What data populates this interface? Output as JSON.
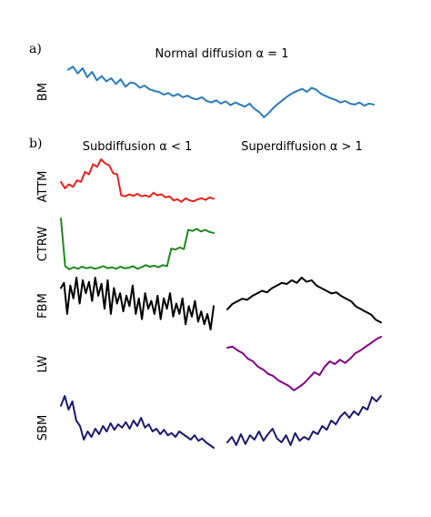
{
  "figure": {
    "panel_a_label": "a)",
    "panel_b_label": "b)",
    "normal_title": "Normal diffusion α = 1",
    "sub_title": "Subdiffusion α < 1",
    "super_title": "Superdiffusion α > 1"
  },
  "colors": {
    "BM": "#2b7bb9",
    "ATTM": "#e8221d",
    "CTRW": "#1f8a1f",
    "FBM": "#000000",
    "LW": "#800080",
    "SBM": "#1a1a6e"
  },
  "chart_data": {
    "type": "line",
    "grid": false,
    "legend": "none",
    "axes_visible": false,
    "panels": [
      {
        "row": "BM",
        "column": "Normal diffusion α = 1",
        "color": "#2b7bb9",
        "values": [
          0.92,
          0.98,
          0.85,
          0.95,
          0.78,
          0.88,
          0.72,
          0.8,
          0.7,
          0.76,
          0.65,
          0.74,
          0.6,
          0.68,
          0.66,
          0.58,
          0.62,
          0.55,
          0.52,
          0.5,
          0.45,
          0.48,
          0.42,
          0.46,
          0.4,
          0.43,
          0.38,
          0.36,
          0.4,
          0.33,
          0.3,
          0.34,
          0.28,
          0.32,
          0.25,
          0.3,
          0.26,
          0.22,
          0.28,
          0.18,
          0.12,
          0.02,
          0.1,
          0.2,
          0.28,
          0.35,
          0.42,
          0.48,
          0.52,
          0.56,
          0.5,
          0.58,
          0.54,
          0.46,
          0.42,
          0.38,
          0.35,
          0.3,
          0.33,
          0.28,
          0.26,
          0.3,
          0.24,
          0.28,
          0.26
        ]
      },
      {
        "row": "ATTM",
        "column": "Subdiffusion α < 1",
        "color": "#e8221d",
        "values": [
          0.55,
          0.42,
          0.5,
          0.45,
          0.58,
          0.55,
          0.75,
          0.7,
          0.9,
          0.85,
          1.0,
          0.92,
          0.88,
          0.72,
          0.7,
          0.28,
          0.26,
          0.3,
          0.27,
          0.31,
          0.26,
          0.28,
          0.25,
          0.33,
          0.28,
          0.3,
          0.24,
          0.26,
          0.18,
          0.2,
          0.15,
          0.22,
          0.18,
          0.16,
          0.2,
          0.22,
          0.19,
          0.24,
          0.21
        ]
      },
      {
        "row": "CTRW",
        "column": "Subdiffusion α < 1",
        "color": "#1f8a1f",
        "values": [
          1.0,
          0.08,
          0.02,
          0.06,
          0.03,
          0.07,
          0.04,
          0.06,
          0.03,
          0.05,
          0.08,
          0.04,
          0.06,
          0.03,
          0.07,
          0.04,
          0.05,
          0.08,
          0.03,
          0.06,
          0.1,
          0.07,
          0.09,
          0.06,
          0.1,
          0.08,
          0.42,
          0.4,
          0.44,
          0.41,
          0.78,
          0.76,
          0.8,
          0.75,
          0.78,
          0.74,
          0.72
        ]
      },
      {
        "row": "FBM",
        "column": "Subdiffusion α < 1",
        "color": "#000000",
        "values": [
          0.8,
          0.9,
          0.3,
          0.85,
          0.6,
          1.0,
          0.5,
          0.95,
          0.7,
          0.92,
          0.55,
          1.0,
          0.65,
          0.88,
          0.4,
          0.95,
          0.3,
          0.8,
          0.5,
          0.7,
          0.35,
          0.65,
          0.45,
          0.85,
          0.3,
          0.6,
          0.2,
          0.7,
          0.4,
          0.55,
          0.3,
          0.65,
          0.2,
          0.6,
          0.4,
          0.7,
          0.25,
          0.5,
          0.3,
          0.6,
          0.1,
          0.45,
          0.25,
          0.55,
          0.15,
          0.35,
          0.1,
          0.3,
          0.0,
          0.45
        ]
      },
      {
        "row": "FBM",
        "column": "Superdiffusion α > 1",
        "color": "#000000",
        "values": [
          0.4,
          0.5,
          0.55,
          0.6,
          0.58,
          0.65,
          0.7,
          0.75,
          0.72,
          0.8,
          0.85,
          0.9,
          0.88,
          0.95,
          0.9,
          1.0,
          0.92,
          0.95,
          0.85,
          0.8,
          0.75,
          0.7,
          0.72,
          0.65,
          0.6,
          0.55,
          0.45,
          0.4,
          0.35,
          0.3,
          0.2,
          0.15
        ]
      },
      {
        "row": "LW",
        "column": "Superdiffusion α > 1",
        "color": "#800080",
        "values": [
          0.8,
          0.82,
          0.75,
          0.7,
          0.6,
          0.55,
          0.45,
          0.4,
          0.32,
          0.28,
          0.2,
          0.15,
          0.1,
          0.02,
          0.08,
          0.15,
          0.25,
          0.35,
          0.3,
          0.45,
          0.55,
          0.5,
          0.58,
          0.52,
          0.6,
          0.7,
          0.75,
          0.82,
          0.88,
          0.95,
          1.0
        ]
      },
      {
        "row": "SBM",
        "column": "Subdiffusion α < 1",
        "color": "#1a1a6e",
        "values": [
          0.82,
          1.0,
          0.75,
          0.9,
          0.55,
          0.45,
          0.2,
          0.35,
          0.25,
          0.4,
          0.3,
          0.45,
          0.35,
          0.5,
          0.38,
          0.48,
          0.42,
          0.52,
          0.4,
          0.55,
          0.45,
          0.6,
          0.42,
          0.48,
          0.35,
          0.4,
          0.3,
          0.38,
          0.28,
          0.32,
          0.25,
          0.35,
          0.3,
          0.25,
          0.2,
          0.28,
          0.18,
          0.22,
          0.15,
          0.1,
          0.05
        ]
      },
      {
        "row": "SBM",
        "column": "Superdiffusion α > 1",
        "color": "#1a1a6e",
        "values": [
          0.15,
          0.25,
          0.1,
          0.3,
          0.12,
          0.28,
          0.2,
          0.35,
          0.18,
          0.3,
          0.4,
          0.22,
          0.15,
          0.28,
          0.1,
          0.32,
          0.18,
          0.25,
          0.2,
          0.35,
          0.3,
          0.45,
          0.38,
          0.55,
          0.48,
          0.62,
          0.7,
          0.6,
          0.72,
          0.65,
          0.8,
          0.75,
          0.98,
          0.9,
          1.0
        ]
      }
    ]
  }
}
